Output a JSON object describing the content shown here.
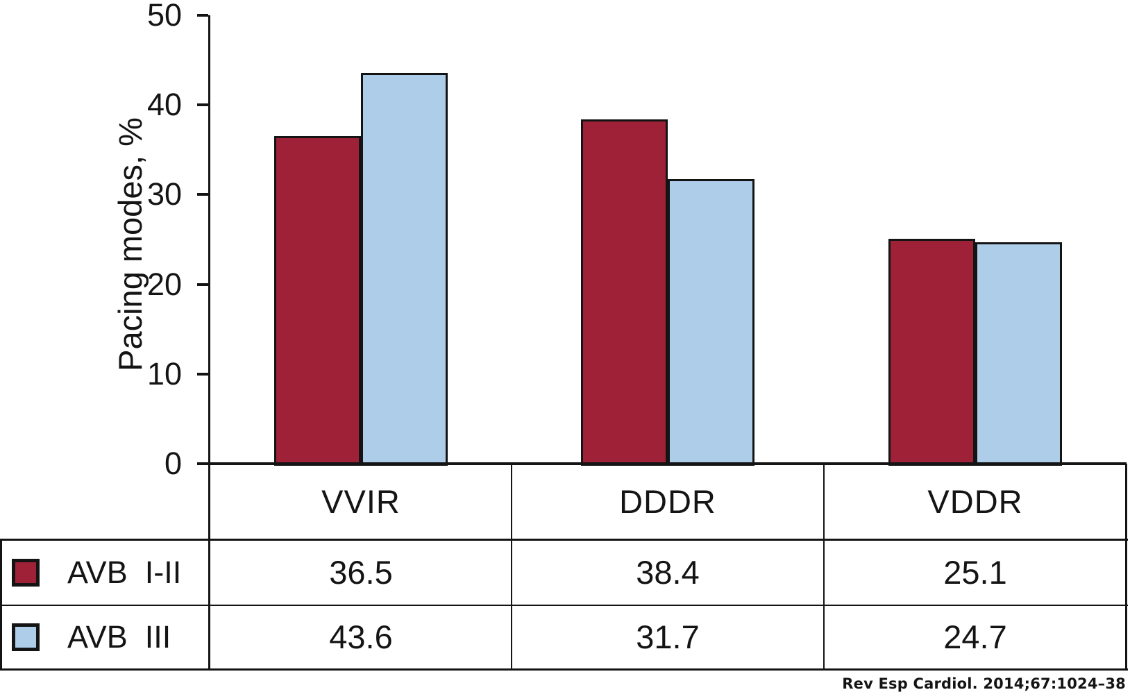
{
  "chart_data": {
    "type": "bar",
    "ylabel": "Pacing modes, %",
    "ylim": [
      0,
      50
    ],
    "yticks": [
      0,
      10,
      20,
      30,
      40,
      50
    ],
    "grid": false,
    "legend_position": "table-below-chart-left-column",
    "bar_outline_color": "#141414",
    "categories": [
      "VVIR",
      "DDDR",
      "VDDR"
    ],
    "series": [
      {
        "name": "AVB  I-II",
        "color": "#9e2138",
        "values": [
          36.5,
          38.4,
          25.1
        ]
      },
      {
        "name": "AVB  III",
        "color": "#aecde8",
        "values": [
          43.6,
          31.7,
          24.7
        ]
      }
    ]
  },
  "footer": {
    "citation": "Rev Esp Cardiol. 2014;67:1024–38"
  }
}
